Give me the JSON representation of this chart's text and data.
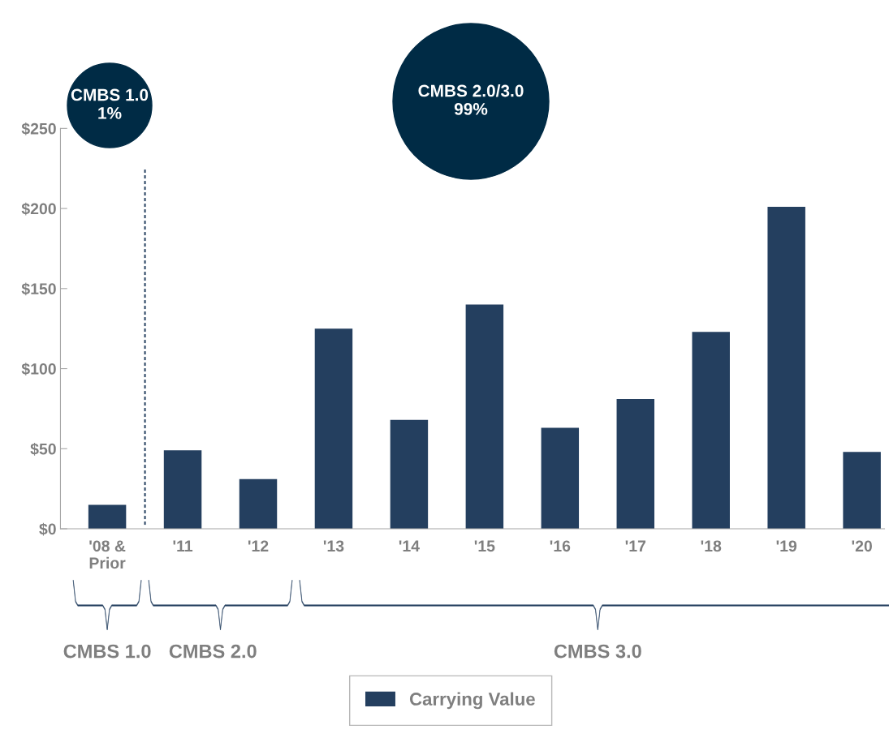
{
  "chart_data": {
    "type": "bar",
    "categories": [
      "'08 &\nPrior",
      "'11",
      "'12",
      "'13",
      "'14",
      "'15",
      "'16",
      "'17",
      "'18",
      "'19",
      "'20"
    ],
    "series": [
      {
        "name": "Carrying Value",
        "color": "#243f5f",
        "values": [
          15,
          49,
          31,
          125,
          68,
          140,
          63,
          81,
          123,
          201,
          48
        ]
      }
    ],
    "ylim": [
      0,
      250
    ],
    "yticks": [
      {
        "value": 0,
        "label": "$0"
      },
      {
        "value": 50,
        "label": "$50"
      },
      {
        "value": 100,
        "label": "$100"
      },
      {
        "value": 150,
        "label": "$150"
      },
      {
        "value": 200,
        "label": "$200"
      },
      {
        "value": 250,
        "label": "$250"
      }
    ],
    "grid": false,
    "legend": "bottom",
    "annotations": [
      "CMBS 1.0\n1%",
      "CMBS 2.0/3.0\n99%",
      "CMBS 1.0",
      "CMBS 2.0",
      "CMBS 3.0"
    ]
  }
}
